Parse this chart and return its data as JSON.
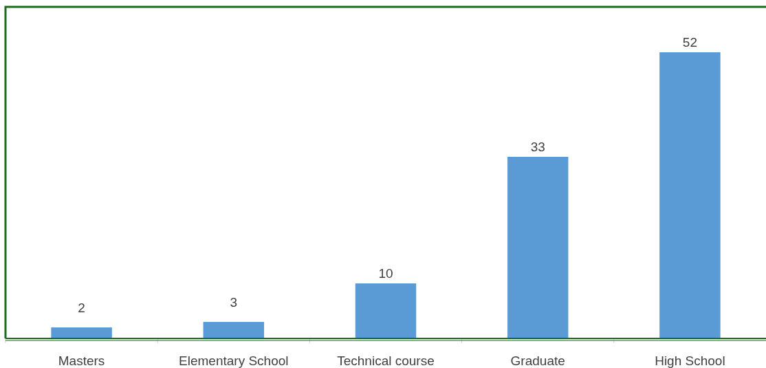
{
  "chart_data": {
    "type": "bar",
    "categories": [
      "Masters",
      "Elementary School",
      "Technical course",
      "Graduate",
      "High School"
    ],
    "values": [
      2,
      3,
      10,
      33,
      52
    ],
    "color": "#5b9bd5",
    "data_labels": true
  }
}
